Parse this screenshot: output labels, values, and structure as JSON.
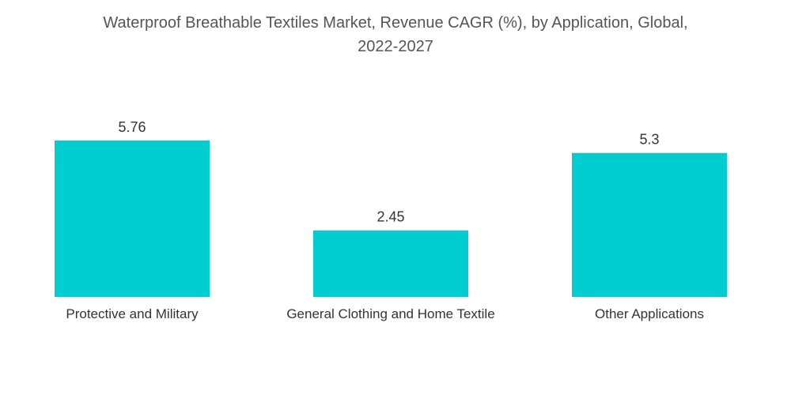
{
  "chart_data": {
    "type": "bar",
    "title_lines": [
      "Waterproof Breathable Textiles Market, Revenue CAGR (%), by Application, Global,",
      "2022-2027"
    ],
    "categories": [
      "Protective and Military",
      "General Clothing and Home Textile",
      "Other Applications"
    ],
    "values": [
      5.76,
      2.45,
      5.3
    ],
    "value_labels": [
      "5.76",
      "2.45",
      "5.3"
    ],
    "bar_color": "#00CDCF",
    "xlabel": "",
    "ylabel": "",
    "grid": false,
    "legend": "none"
  }
}
